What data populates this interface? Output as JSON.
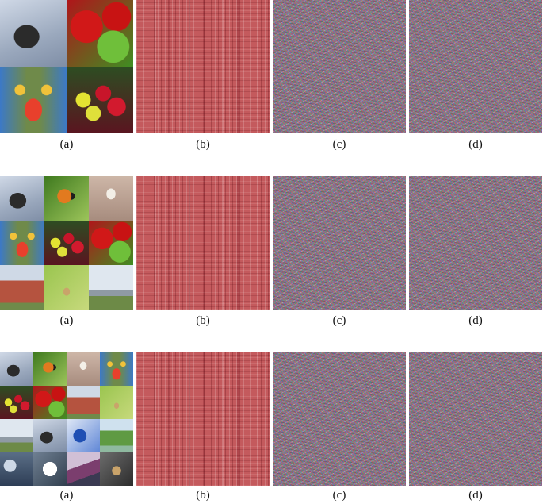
{
  "rows": [
    {
      "id": "row1",
      "captions": [
        "(a)",
        "(b)",
        "(c)",
        "(d)"
      ],
      "mosaic_grid": "2x2",
      "tiles": [
        "helicopter",
        "peppers",
        "baboon",
        "grapes"
      ]
    },
    {
      "id": "row2",
      "captions": [
        "(a)",
        "(b)",
        "(c)",
        "(d)"
      ],
      "mosaic_grid": "3x3",
      "tiles": [
        "helicopter",
        "butterfly",
        "bird",
        "baboon",
        "grapes",
        "peppers",
        "house",
        "insect",
        "bridge"
      ]
    },
    {
      "id": "row3",
      "captions": [
        "(a)",
        "(b)",
        "(c)",
        "(d)"
      ],
      "mosaic_grid": "4x4",
      "tiles": [
        "helicopter",
        "butterfly",
        "bird",
        "baboon",
        "grapes",
        "peppers",
        "house",
        "insect",
        "bridge",
        "helicopter",
        "blue",
        "valley",
        "clouds",
        "snow",
        "mountain",
        "cat"
      ]
    }
  ],
  "colors": {
    "pattern_b": "#c45a5d",
    "noise_c_d": "#8a7d86",
    "background": "#ffffff"
  }
}
